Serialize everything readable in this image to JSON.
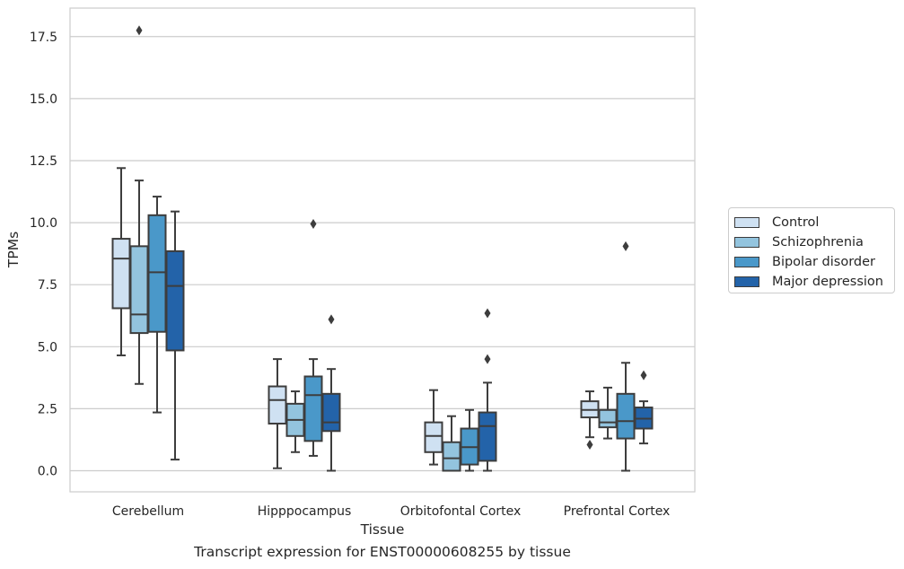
{
  "chart_data": {
    "type": "box",
    "xlabel": "Tissue",
    "ylabel": "TPMs",
    "caption": "Transcript expression for ENST00000608255 by tissue",
    "ylim": [
      -0.85,
      18.65
    ],
    "yticks": [
      0.0,
      2.5,
      5.0,
      7.5,
      10.0,
      12.5,
      15.0,
      17.5
    ],
    "ytick_labels": [
      "0.0",
      "2.5",
      "5.0",
      "7.5",
      "10.0",
      "12.5",
      "15.0",
      "17.5"
    ],
    "grid": "horizontal",
    "legend_position": "right",
    "categories": [
      "Cerebellum",
      "Hipppocampus",
      "Orbitofontal Cortex",
      "Prefrontal Cortex"
    ],
    "series": [
      {
        "name": "Control",
        "color": "#cfe1f2",
        "boxes": [
          {
            "whislo": 4.65,
            "q1": 6.55,
            "med": 8.55,
            "q3": 9.35,
            "whishi": 12.2,
            "fliers": []
          },
          {
            "whislo": 0.1,
            "q1": 1.9,
            "med": 2.85,
            "q3": 3.4,
            "whishi": 4.5,
            "fliers": []
          },
          {
            "whislo": 0.25,
            "q1": 0.75,
            "med": 1.4,
            "q3": 1.95,
            "whishi": 3.25,
            "fliers": []
          },
          {
            "whislo": 1.35,
            "q1": 2.15,
            "med": 2.45,
            "q3": 2.8,
            "whishi": 3.2,
            "fliers": [
              1.05
            ]
          }
        ]
      },
      {
        "name": "Schizophrenia",
        "color": "#93c4de",
        "boxes": [
          {
            "whislo": 3.5,
            "q1": 5.55,
            "med": 6.3,
            "q3": 9.05,
            "whishi": 11.7,
            "fliers": [
              17.75
            ]
          },
          {
            "whislo": 0.75,
            "q1": 1.4,
            "med": 2.05,
            "q3": 2.7,
            "whishi": 3.2,
            "fliers": []
          },
          {
            "whislo": 0.0,
            "q1": 0.0,
            "med": 0.5,
            "q3": 1.15,
            "whishi": 2.2,
            "fliers": []
          },
          {
            "whislo": 1.3,
            "q1": 1.75,
            "med": 1.95,
            "q3": 2.45,
            "whishi": 3.35,
            "fliers": []
          }
        ]
      },
      {
        "name": "Bipolar disorder",
        "color": "#4a98c9",
        "boxes": [
          {
            "whislo": 2.35,
            "q1": 5.6,
            "med": 8.0,
            "q3": 10.3,
            "whishi": 11.05,
            "fliers": []
          },
          {
            "whislo": 0.6,
            "q1": 1.2,
            "med": 3.05,
            "q3": 3.8,
            "whishi": 4.5,
            "fliers": [
              9.95
            ]
          },
          {
            "whislo": 0.0,
            "q1": 0.25,
            "med": 0.95,
            "q3": 1.7,
            "whishi": 2.45,
            "fliers": []
          },
          {
            "whislo": 0.0,
            "q1": 1.3,
            "med": 2.0,
            "q3": 3.1,
            "whishi": 4.35,
            "fliers": [
              9.05
            ]
          }
        ]
      },
      {
        "name": "Major depression",
        "color": "#2363a9",
        "boxes": [
          {
            "whislo": 0.45,
            "q1": 4.85,
            "med": 7.45,
            "q3": 8.85,
            "whishi": 10.45,
            "fliers": []
          },
          {
            "whislo": 0.0,
            "q1": 1.6,
            "med": 1.95,
            "q3": 3.1,
            "whishi": 4.1,
            "fliers": [
              6.1
            ]
          },
          {
            "whislo": 0.0,
            "q1": 0.4,
            "med": 1.8,
            "q3": 2.35,
            "whishi": 3.55,
            "fliers": [
              4.5,
              6.35
            ]
          },
          {
            "whislo": 1.1,
            "q1": 1.7,
            "med": 2.1,
            "q3": 2.55,
            "whishi": 2.8,
            "fliers": [
              3.85
            ]
          }
        ]
      }
    ]
  }
}
